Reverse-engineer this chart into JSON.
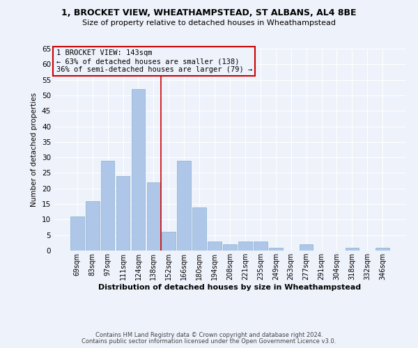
{
  "title1": "1, BROCKET VIEW, WHEATHAMPSTEAD, ST ALBANS, AL4 8BE",
  "title2": "Size of property relative to detached houses in Wheathampstead",
  "xlabel": "Distribution of detached houses by size in Wheathampstead",
  "ylabel": "Number of detached properties",
  "categories": [
    "69sqm",
    "83sqm",
    "97sqm",
    "111sqm",
    "124sqm",
    "138sqm",
    "152sqm",
    "166sqm",
    "180sqm",
    "194sqm",
    "208sqm",
    "221sqm",
    "235sqm",
    "249sqm",
    "263sqm",
    "277sqm",
    "291sqm",
    "304sqm",
    "318sqm",
    "332sqm",
    "346sqm"
  ],
  "values": [
    11,
    16,
    29,
    24,
    52,
    22,
    6,
    29,
    14,
    3,
    2,
    3,
    3,
    1,
    0,
    2,
    0,
    0,
    1,
    0,
    1
  ],
  "bar_color": "#aec6e8",
  "bar_edge_color": "#8ab0d0",
  "background_color": "#eef2fb",
  "grid_color": "#ffffff",
  "annotation_line1": "1 BROCKET VIEW: 143sqm",
  "annotation_line2": "← 63% of detached houses are smaller (138)",
  "annotation_line3": "36% of semi-detached houses are larger (79) →",
  "vline_index": 5.5,
  "vline_color": "#cc0000",
  "ylim": [
    0,
    65
  ],
  "yticks": [
    0,
    5,
    10,
    15,
    20,
    25,
    30,
    35,
    40,
    45,
    50,
    55,
    60,
    65
  ],
  "footnote1": "Contains HM Land Registry data © Crown copyright and database right 2024.",
  "footnote2": "Contains public sector information licensed under the Open Government Licence v3.0."
}
